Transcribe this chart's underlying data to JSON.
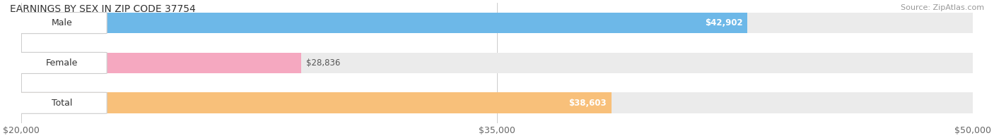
{
  "title": "EARNINGS BY SEX IN ZIP CODE 37754",
  "source": "Source: ZipAtlas.com",
  "categories": [
    "Male",
    "Female",
    "Total"
  ],
  "values": [
    42902,
    28836,
    38603
  ],
  "bar_colors": [
    "#6db8e8",
    "#f5a8c0",
    "#f8c07a"
  ],
  "bar_bg_color": "#ebebeb",
  "value_labels": [
    "$42,902",
    "$28,836",
    "$38,603"
  ],
  "xmin": 20000,
  "xmax": 50000,
  "xticks": [
    20000,
    35000,
    50000
  ],
  "xtick_labels": [
    "$20,000",
    "$35,000",
    "$50,000"
  ],
  "label_fontsize": 9,
  "value_fontsize": 8.5,
  "title_fontsize": 10,
  "source_fontsize": 8,
  "background_color": "#ffffff",
  "figsize": [
    14.06,
    1.96
  ],
  "dpi": 100
}
